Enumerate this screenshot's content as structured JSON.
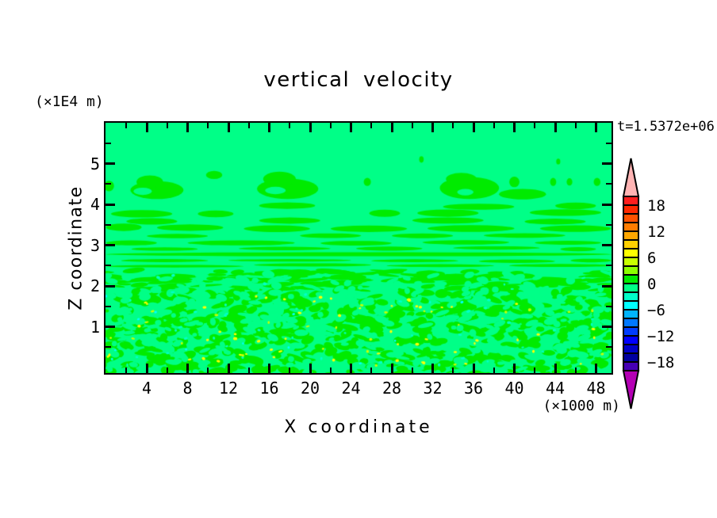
{
  "chart_data": {
    "type": "heatmap",
    "title": "vertical velocity",
    "time_label": "t=1.5372e+06",
    "xlabel": "X coordinate",
    "x_unit": "(×1000 m)",
    "ylabel": "Z coordinate",
    "y_unit": "(×1E4 m)",
    "xlim": [
      0,
      49.5
    ],
    "ylim": [
      -0.14,
      6.0
    ],
    "x_major_ticks": [
      4,
      8,
      12,
      16,
      20,
      24,
      28,
      32,
      36,
      40,
      44,
      48
    ],
    "x_minor_ticks": [
      2,
      6,
      10,
      14,
      18,
      22,
      26,
      30,
      34,
      38,
      42,
      46
    ],
    "y_major_ticks": [
      1,
      2,
      3,
      4,
      5
    ],
    "y_minor_ticks": [
      0.5,
      1.5,
      2.5,
      3.5,
      4.5,
      5.5
    ],
    "colorbar": {
      "top_value": 20,
      "value_step": 2,
      "cell_colors": [
        "#FF1E1E",
        "#FF2800",
        "#FF5200",
        "#FF7C00",
        "#FFA600",
        "#FFD000",
        "#FFFF00",
        "#C8FF00",
        "#8CFF00",
        "#00EB00",
        "#00FF87",
        "#00FFC8",
        "#00FFFF",
        "#00B4FF",
        "#0078FF",
        "#003CFF",
        "#0000FF",
        "#0000C8",
        "#0000A0",
        "#4600B4"
      ],
      "labels": [
        "18",
        "12",
        "6",
        "0",
        "−6",
        "−12",
        "−18"
      ],
      "label_first_boundary": 1,
      "label_every_cells": 3,
      "over_color": "#FFB4B4",
      "under_color": "#B400B4"
    },
    "field": {
      "background_color": "#00FF87",
      "background_band": "-2 to 0",
      "positive_color": "#00EB00",
      "positive_band": "0 to 2",
      "seed": 1337,
      "turbulence": {
        "z_top": 2.42,
        "n_green": 760,
        "n_bg": 400,
        "n_yellow": 58,
        "n_chartreuse": 24,
        "n_mint": 46,
        "n_cyan": 12,
        "yellow_color": "#FFFF00",
        "chartreuse_color": "#C8FF00",
        "mint_color": "#00FFC8",
        "cyan_color": "#00FFFF"
      },
      "streak_rows": [
        {
          "z": 2.5,
          "t": 3,
          "segs": [
            [
              0,
              13.5
            ],
            [
              14.5,
              26
            ],
            [
              27.5,
              38
            ],
            [
              39.5,
              49.5
            ]
          ]
        },
        {
          "z": 2.62,
          "t": 3,
          "segs": [
            [
              1.5,
              10
            ],
            [
              12,
              24
            ],
            [
              26,
              34.5
            ],
            [
              36.5,
              44
            ],
            [
              45.5,
              49.5
            ]
          ]
        },
        {
          "z": 2.77,
          "t": 5,
          "segs": [
            [
              0,
              49.5
            ]
          ]
        },
        {
          "z": 2.92,
          "t": 4,
          "segs": [
            [
              2.5,
              9
            ],
            [
              13,
              22
            ],
            [
              24.5,
              31
            ],
            [
              34,
              42.5
            ],
            [
              44.5,
              48
            ]
          ]
        },
        {
          "z": 3.07,
          "t": 5,
          "segs": [
            [
              0,
              5
            ],
            [
              8,
              18.5
            ],
            [
              21,
              28
            ],
            [
              31,
              39.5
            ],
            [
              42,
              48.5
            ]
          ]
        },
        {
          "z": 3.24,
          "t": 5,
          "segs": [
            [
              4,
              10
            ],
            [
              19,
              25
            ],
            [
              28,
              34
            ],
            [
              37,
              45
            ]
          ]
        },
        {
          "z": 3.42,
          "t": 8,
          "segs": [
            [
              0,
              3.5
            ],
            [
              5,
              11.5
            ],
            [
              13.5,
              20
            ],
            [
              22,
              29.5
            ],
            [
              31.5,
              40
            ],
            [
              42.5,
              49.5
            ]
          ]
        },
        {
          "z": 3.6,
          "t": 7,
          "segs": [
            [
              2,
              7
            ],
            [
              15,
              21
            ],
            [
              30,
              37
            ],
            [
              41,
              47
            ]
          ]
        },
        {
          "z": 3.78,
          "t": 8,
          "segs": [
            [
              0.5,
              6.5
            ],
            [
              9,
              12.5
            ],
            [
              25.8,
              28.8
            ],
            [
              30.5,
              36.5
            ],
            [
              41.5,
              48.5
            ]
          ]
        },
        {
          "z": 3.95,
          "t": 7,
          "segs": [
            [
              15,
              20.5
            ],
            [
              33,
              40
            ],
            [
              44,
              48
            ]
          ]
        }
      ],
      "wave_blobs": [
        {
          "cx": 5.0,
          "cz": 4.35,
          "rx": 2.6,
          "rz": 0.22
        },
        {
          "cx": 4.3,
          "cz": 4.55,
          "rx": 1.3,
          "rz": 0.16
        },
        {
          "cx": 17.8,
          "cz": 4.38,
          "rx": 3.0,
          "rz": 0.25
        },
        {
          "cx": 17.0,
          "cz": 4.62,
          "rx": 1.6,
          "rz": 0.18
        },
        {
          "cx": 35.6,
          "cz": 4.4,
          "rx": 2.9,
          "rz": 0.27
        },
        {
          "cx": 34.8,
          "cz": 4.62,
          "rx": 1.5,
          "rz": 0.15
        },
        {
          "cx": 40.8,
          "cz": 4.25,
          "rx": 2.3,
          "rz": 0.13
        },
        {
          "cx": 0.3,
          "cz": 4.45,
          "rx": 0.5,
          "rz": 0.13
        },
        {
          "cx": 10.6,
          "cz": 4.72,
          "rx": 0.8,
          "rz": 0.1
        },
        {
          "cx": 25.6,
          "cz": 4.55,
          "rx": 0.35,
          "rz": 0.1
        },
        {
          "cx": 40.0,
          "cz": 4.55,
          "rx": 0.5,
          "rz": 0.13
        },
        {
          "cx": 43.8,
          "cz": 4.55,
          "rx": 0.3,
          "rz": 0.1
        },
        {
          "cx": 45.4,
          "cz": 4.55,
          "rx": 0.28,
          "rz": 0.09
        },
        {
          "cx": 48.1,
          "cz": 4.55,
          "rx": 0.33,
          "rz": 0.1
        },
        {
          "cx": 30.9,
          "cz": 5.1,
          "rx": 0.22,
          "rz": 0.08
        },
        {
          "cx": 44.3,
          "cz": 5.05,
          "rx": 0.2,
          "rz": 0.07
        }
      ],
      "notches": [
        {
          "cx": 3.6,
          "cz": 4.32,
          "rx": 0.9,
          "rz": 0.09
        },
        {
          "cx": 16.6,
          "cz": 4.34,
          "rx": 1.0,
          "rz": 0.09
        },
        {
          "cx": 35.2,
          "cz": 4.3,
          "rx": 0.8,
          "rz": 0.08
        }
      ]
    }
  }
}
